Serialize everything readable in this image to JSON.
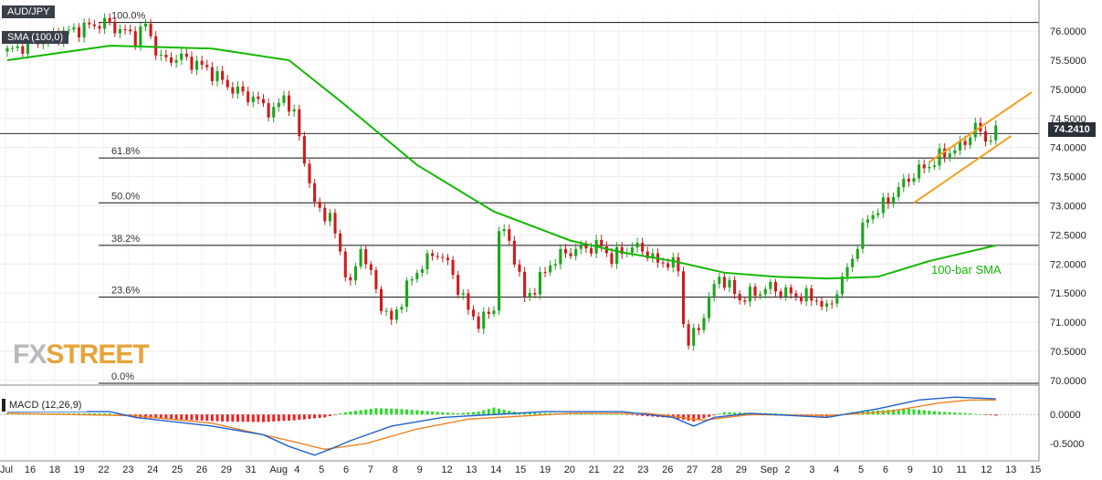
{
  "legend": {
    "symbol": "AUD/JPY",
    "sma": "SMA (100,0)",
    "macd": "MACD (12,26,9)"
  },
  "current_price": "74.2410",
  "watermark": {
    "fx": "FX",
    "street": "STREET"
  },
  "sma_annotation": "100-bar SMA",
  "colors": {
    "bull": "#1ca51c",
    "bear": "#cc1c1c",
    "sma": "#12b800",
    "channel": "#f0a020",
    "macd_line": "#2060d0",
    "signal_line": "#f08020",
    "hist_pos": "#22dd22",
    "hist_neg": "#ee2222"
  },
  "chart_data": [
    {
      "type": "candlestick",
      "title": "AUD/JPY",
      "ylim": [
        69.95,
        76.3
      ],
      "y_ticks": [
        "76.0000",
        "75.5000",
        "75.0000",
        "74.5000",
        "74.0000",
        "73.5000",
        "73.0000",
        "72.5000",
        "72.0000",
        "71.5000",
        "71.0000",
        "70.5000",
        "70.0000"
      ],
      "x_ticks": [
        "Jul",
        "16",
        "18",
        "19",
        "22",
        "23",
        "24",
        "25",
        "26",
        "29",
        "31",
        "Aug",
        "4",
        "5",
        "6",
        "7",
        "8",
        "9",
        "12",
        "13",
        "14",
        "15",
        "19",
        "20",
        "21",
        "22",
        "23",
        "26",
        "27",
        "28",
        "29",
        "Sep",
        "2",
        "3",
        "4",
        "5",
        "6",
        "9",
        "10",
        "11",
        "12",
        "13",
        "15"
      ],
      "path": [
        [
          0,
          75.65
        ],
        [
          10,
          75.95
        ],
        [
          19,
          76.15
        ],
        [
          25,
          75.9
        ],
        [
          27,
          76.1
        ],
        [
          30,
          75.5
        ],
        [
          34,
          75.55
        ],
        [
          39,
          75.35
        ],
        [
          44,
          75.0
        ],
        [
          48,
          74.85
        ],
        [
          52,
          74.6
        ],
        [
          54,
          74.9
        ],
        [
          56,
          74.55
        ],
        [
          58,
          73.8
        ],
        [
          60,
          73.0
        ],
        [
          63,
          72.8
        ],
        [
          65,
          72.2
        ],
        [
          67,
          71.6
        ],
        [
          69,
          72.3
        ],
        [
          71,
          71.8
        ],
        [
          73,
          71.3
        ],
        [
          75,
          71.0
        ],
        [
          78,
          71.6
        ],
        [
          81,
          72.0
        ],
        [
          84,
          72.2
        ],
        [
          86,
          72.0
        ],
        [
          88,
          71.6
        ],
        [
          90,
          71.2
        ],
        [
          92,
          71.0
        ],
        [
          93,
          71.05
        ],
        [
          95,
          71.25
        ],
        [
          96,
          72.6
        ],
        [
          98,
          72.4
        ],
        [
          100,
          71.8
        ],
        [
          101,
          71.4
        ],
        [
          103,
          71.6
        ],
        [
          106,
          72.0
        ],
        [
          109,
          72.2
        ],
        [
          112,
          72.25
        ],
        [
          114,
          72.3
        ],
        [
          116,
          72.3
        ],
        [
          118,
          72.1
        ],
        [
          122,
          72.3
        ],
        [
          125,
          72.2
        ],
        [
          127,
          72.0
        ],
        [
          129,
          72.05
        ],
        [
          131,
          71.9
        ],
        [
          132,
          71.0
        ],
        [
          133,
          70.65
        ],
        [
          135,
          70.9
        ],
        [
          137,
          71.4
        ],
        [
          139,
          71.8
        ],
        [
          141,
          71.6
        ],
        [
          143,
          71.4
        ],
        [
          146,
          71.5
        ],
        [
          149,
          71.6
        ],
        [
          152,
          71.5
        ],
        [
          155,
          71.45
        ],
        [
          158,
          71.4
        ],
        [
          160,
          71.2
        ],
        [
          162,
          71.55
        ],
        [
          164,
          71.9
        ],
        [
          166,
          72.35
        ],
        [
          168,
          72.8
        ],
        [
          171,
          73.0
        ],
        [
          174,
          73.3
        ],
        [
          177,
          73.55
        ],
        [
          180,
          73.7
        ],
        [
          183,
          73.9
        ],
        [
          186,
          74.0
        ],
        [
          189,
          74.35
        ],
        [
          191,
          74.15
        ],
        [
          193,
          74.24
        ]
      ],
      "sma_100": [
        [
          0,
          75.5
        ],
        [
          20,
          75.75
        ],
        [
          40,
          75.7
        ],
        [
          55,
          75.5
        ],
        [
          65,
          74.8
        ],
        [
          80,
          73.7
        ],
        [
          95,
          72.9
        ],
        [
          110,
          72.4
        ],
        [
          120,
          72.2
        ],
        [
          130,
          72.05
        ],
        [
          140,
          71.85
        ],
        [
          150,
          71.78
        ],
        [
          160,
          71.75
        ],
        [
          170,
          71.78
        ],
        [
          180,
          72.05
        ],
        [
          193,
          72.32
        ]
      ],
      "channel": {
        "upper": [
          [
            180,
            73.75
          ],
          [
            200,
            74.95
          ]
        ],
        "lower": [
          [
            177,
            73.05
          ],
          [
            196,
            74.2
          ]
        ]
      },
      "fibonacci": [
        {
          "level": "100.0%",
          "price": 76.15
        },
        {
          "level": "61.8%",
          "price": 73.82
        },
        {
          "level": "50.0%",
          "price": 73.05
        },
        {
          "level": "38.2%",
          "price": 72.32
        },
        {
          "level": "23.6%",
          "price": 71.43
        },
        {
          "level": "0.0%",
          "price": 69.95
        }
      ],
      "last_price": 74.241
    },
    {
      "type": "line",
      "title": "MACD (12,26,9)",
      "ylim": [
        -0.72,
        0.35
      ],
      "y_ticks": [
        "0.0000",
        "-0.5000"
      ],
      "macd": [
        [
          0,
          0.05
        ],
        [
          20,
          0.05
        ],
        [
          25,
          -0.05
        ],
        [
          30,
          -0.1
        ],
        [
          40,
          -0.2
        ],
        [
          50,
          -0.35
        ],
        [
          55,
          -0.55
        ],
        [
          60,
          -0.7
        ],
        [
          63,
          -0.6
        ],
        [
          67,
          -0.45
        ],
        [
          75,
          -0.2
        ],
        [
          85,
          -0.05
        ],
        [
          95,
          0.0
        ],
        [
          105,
          0.05
        ],
        [
          120,
          0.05
        ],
        [
          130,
          -0.05
        ],
        [
          134,
          -0.2
        ],
        [
          138,
          -0.05
        ],
        [
          145,
          0.02
        ],
        [
          160,
          -0.05
        ],
        [
          170,
          0.1
        ],
        [
          178,
          0.25
        ],
        [
          185,
          0.3
        ],
        [
          193,
          0.27
        ]
      ],
      "signal": [
        [
          0,
          0.02
        ],
        [
          25,
          -0.02
        ],
        [
          40,
          -0.15
        ],
        [
          55,
          -0.45
        ],
        [
          62,
          -0.6
        ],
        [
          70,
          -0.5
        ],
        [
          80,
          -0.25
        ],
        [
          90,
          -0.08
        ],
        [
          110,
          0.02
        ],
        [
          125,
          0.02
        ],
        [
          136,
          -0.1
        ],
        [
          145,
          0.0
        ],
        [
          160,
          -0.02
        ],
        [
          172,
          0.05
        ],
        [
          182,
          0.2
        ],
        [
          188,
          0.25
        ],
        [
          193,
          0.25
        ]
      ],
      "histogram": [
        [
          0,
          0.02
        ],
        [
          20,
          0.02
        ],
        [
          25,
          -0.05
        ],
        [
          32,
          -0.08
        ],
        [
          42,
          -0.12
        ],
        [
          50,
          -0.13
        ],
        [
          56,
          -0.1
        ],
        [
          62,
          -0.05
        ],
        [
          66,
          0.04
        ],
        [
          72,
          0.11
        ],
        [
          76,
          0.1
        ],
        [
          82,
          0.06
        ],
        [
          88,
          0.02
        ],
        [
          92,
          0.05
        ],
        [
          95,
          0.12
        ],
        [
          100,
          0.03
        ],
        [
          110,
          0.02
        ],
        [
          120,
          0.0
        ],
        [
          130,
          -0.06
        ],
        [
          134,
          -0.12
        ],
        [
          137,
          -0.04
        ],
        [
          140,
          0.04
        ],
        [
          150,
          0.02
        ],
        [
          160,
          -0.04
        ],
        [
          165,
          0.04
        ],
        [
          172,
          0.08
        ],
        [
          176,
          0.1
        ],
        [
          182,
          0.05
        ],
        [
          188,
          0.02
        ],
        [
          193,
          -0.02
        ]
      ]
    }
  ]
}
